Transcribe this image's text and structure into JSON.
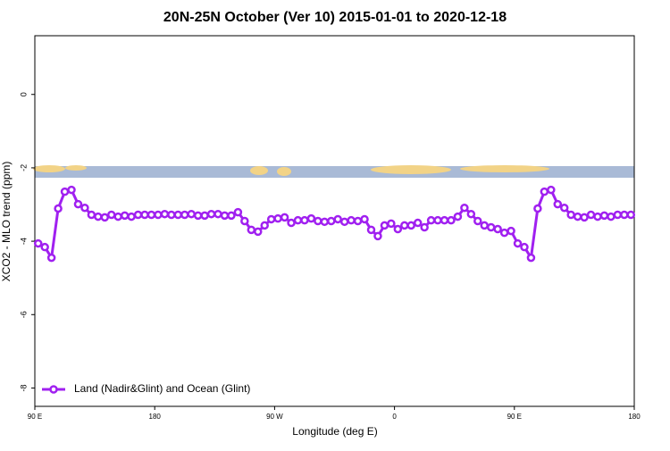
{
  "chart_data": {
    "type": "line",
    "title": "20N-25N October (Ver 10)   2015-01-01 to 2020-12-18",
    "x_label": "Longitude (deg E)",
    "y_label": "XCO2 - MLO trend (ppm)",
    "xlim": [
      90,
      540
    ],
    "xticks": [
      {
        "value": 90,
        "label": "90 E"
      },
      180,
      {
        "value": 270,
        "label": "90 W"
      },
      {
        "value": 360,
        "label": "0"
      },
      {
        "value": 450,
        "label": "90 E"
      },
      {
        "value": 540,
        "label": "180"
      }
    ],
    "ylim": [
      -8.5,
      1.6
    ],
    "yticks": [
      0,
      -2,
      -4,
      -6,
      -8
    ],
    "grid": false,
    "legend": "bottom-left",
    "x": [
      92.5,
      97.5,
      102.5,
      107.5,
      112.5,
      117.5,
      122.5,
      127.5,
      132.5,
      137.5,
      142.5,
      147.5,
      152.5,
      157.5,
      162.5,
      167.5,
      172.5,
      177.5,
      182.5,
      187.5,
      192.5,
      197.5,
      202.5,
      207.5,
      212.5,
      217.5,
      222.5,
      227.5,
      232.5,
      237.5,
      242.5,
      247.5,
      252.5,
      257.5,
      262.5,
      267.5,
      272.5,
      277.5,
      282.5,
      287.5,
      292.5,
      297.5,
      302.5,
      307.5,
      312.5,
      317.5,
      322.5,
      327.5,
      332.5,
      337.5,
      342.5,
      347.5,
      352.5,
      357.5,
      362.5,
      367.5,
      372.5,
      377.5,
      382.5,
      387.5,
      392.5,
      397.5,
      402.5,
      407.5,
      412.5,
      417.5,
      422.5,
      427.5,
      432.5,
      437.5,
      442.5,
      447.5,
      452.5,
      457.5,
      462.5,
      467.5,
      472.5,
      477.5,
      482.5,
      487.5,
      492.5,
      497.5,
      502.5,
      507.5,
      512.5,
      517.5,
      522.5,
      527.5,
      532.5,
      537.5
    ],
    "series": [
      {
        "name": "Land (Nadir&Glint) and Ocean (Glint)",
        "color": "#a020f0",
        "values": [
          -4.06,
          -4.16,
          -4.45,
          -3.11,
          -2.65,
          -2.6,
          -2.99,
          -3.09,
          -3.28,
          -3.33,
          -3.35,
          -3.28,
          -3.33,
          -3.3,
          -3.33,
          -3.28,
          -3.28,
          -3.28,
          -3.28,
          -3.26,
          -3.28,
          -3.28,
          -3.28,
          -3.26,
          -3.3,
          -3.3,
          -3.26,
          -3.26,
          -3.3,
          -3.3,
          -3.21,
          -3.45,
          -3.69,
          -3.74,
          -3.57,
          -3.4,
          -3.38,
          -3.35,
          -3.5,
          -3.43,
          -3.43,
          -3.38,
          -3.45,
          -3.47,
          -3.45,
          -3.4,
          -3.47,
          -3.43,
          -3.45,
          -3.4,
          -3.69,
          -3.86,
          -3.57,
          -3.52,
          -3.67,
          -3.57,
          -3.57,
          -3.5,
          -3.62,
          -3.43,
          -3.43,
          -3.43,
          -3.43,
          -3.33,
          -3.09,
          -3.26,
          -3.45,
          -3.57,
          -3.62,
          -3.67,
          -3.77,
          -3.72,
          -4.06,
          -4.16,
          -4.45,
          -3.11,
          -2.65,
          -2.6,
          -2.99,
          -3.09,
          -3.28,
          -3.33,
          -3.35,
          -3.28,
          -3.33,
          -3.3,
          -3.33,
          -3.28,
          -3.28,
          -3.28
        ]
      }
    ]
  }
}
